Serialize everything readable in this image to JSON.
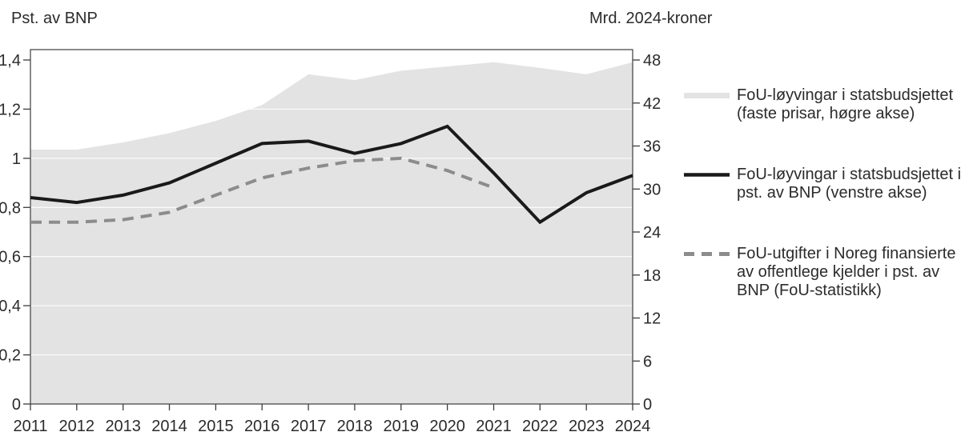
{
  "chart_data": {
    "type": "area+line combo, dual axis",
    "x": [
      2011,
      2012,
      2013,
      2014,
      2015,
      2016,
      2017,
      2018,
      2019,
      2020,
      2021,
      2022,
      2023,
      2024
    ],
    "left_axis": {
      "title": "Pst. av BNP",
      "min": 0,
      "max": 1.4,
      "tick_values": [
        0,
        0.2,
        0.4,
        0.6,
        0.8,
        1,
        1.2,
        1.4
      ],
      "tick_labels": [
        "0",
        "0,2",
        "0,4",
        "0,6",
        "0,8",
        "1",
        "1,2",
        "1,4"
      ]
    },
    "right_axis": {
      "title": "Mrd. 2024-kroner",
      "min": 0,
      "max": 48,
      "tick_values": [
        0,
        6,
        12,
        18,
        24,
        30,
        36,
        42,
        48
      ],
      "tick_labels": [
        "0",
        "6",
        "12",
        "18",
        "24",
        "30",
        "36",
        "42",
        "48"
      ]
    },
    "grid": "thin white horizontal lines at left-axis ticks, visible only over the shaded area",
    "series": [
      {
        "name": "FoU-løyvingar i statsbudsjettet (faste prisar, høgre akse)",
        "type": "area",
        "axis": "right",
        "color": "#e3e3e3",
        "values": [
          35.5,
          35.5,
          36.5,
          37.8,
          39.5,
          41.7,
          46.0,
          45.2,
          46.5,
          47.1,
          47.7,
          46.9,
          46.0,
          47.7
        ]
      },
      {
        "name": "FoU-løyvingar i statsbudsjettet i pst. av BNP (venstre akse)",
        "type": "line",
        "style": "solid",
        "axis": "left",
        "color": "#1a1a1a",
        "values": [
          0.84,
          0.82,
          0.85,
          0.9,
          0.98,
          1.06,
          1.07,
          1.02,
          1.06,
          1.13,
          0.94,
          0.74,
          0.86,
          0.93
        ]
      },
      {
        "name": "FoU-utgifter i Noreg finansierte av offentlege kjelder i pst. av BNP (FoU-statistikk)",
        "type": "line",
        "style": "dashed",
        "axis": "left",
        "color": "#8c8c8c",
        "values": [
          0.74,
          0.74,
          0.75,
          0.78,
          0.85,
          0.92,
          0.96,
          0.99,
          1.0,
          0.95,
          0.88,
          null,
          null,
          null
        ]
      }
    ]
  },
  "legend": {
    "items": [
      {
        "swatch": "area-gray",
        "lines": [
          "FoU-løyvingar i statsbudsjettet",
          "(faste prisar, høgre akse)"
        ]
      },
      {
        "swatch": "solid-black-line",
        "lines": [
          "FoU-løyvingar i statsbudsjettet i",
          "pst. av BNP (venstre akse)"
        ]
      },
      {
        "swatch": "dashed-gray-line",
        "lines": [
          "FoU-utgifter i Noreg finansierte",
          "av offentlege kjelder i pst. av",
          "BNP (FoU-statistikk)"
        ]
      }
    ]
  },
  "colors": {
    "background": "#ffffff",
    "area_fill": "#e3e3e3",
    "solid_line": "#1a1a1a",
    "dashed_line": "#8c8c8c",
    "frame": "#3c3c3c",
    "gridline": "#ffffff",
    "text": "#2d2a2b"
  }
}
